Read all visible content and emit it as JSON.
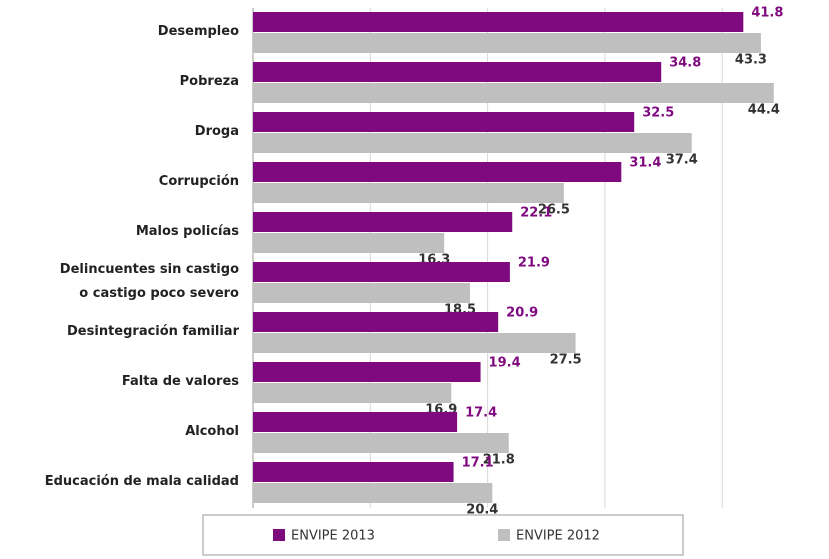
{
  "chart_data": {
    "type": "bar",
    "orientation": "horizontal",
    "categories": [
      "Desempleo",
      "Pobreza",
      "Droga",
      "Corrupción",
      "Malos policías",
      "Delincuentes sin castigo\no castigo poco severo",
      "Desintegración familiar",
      "Falta de valores",
      "Alcohol",
      "Educación de mala calidad"
    ],
    "series": [
      {
        "name": "ENVIPE 2013",
        "color": "#7f0a7f",
        "values": [
          41.8,
          34.8,
          32.5,
          31.4,
          22.1,
          21.9,
          20.9,
          19.4,
          17.4,
          17.1
        ]
      },
      {
        "name": "ENVIPE 2012",
        "color": "#bfbfbf",
        "values": [
          43.3,
          44.4,
          37.4,
          26.5,
          16.3,
          18.5,
          27.5,
          16.9,
          21.8,
          20.4
        ]
      }
    ],
    "xlim": [
      0,
      45
    ],
    "xticks": [
      0,
      10,
      20,
      30,
      40
    ],
    "grid": true,
    "legend": "bottom"
  }
}
